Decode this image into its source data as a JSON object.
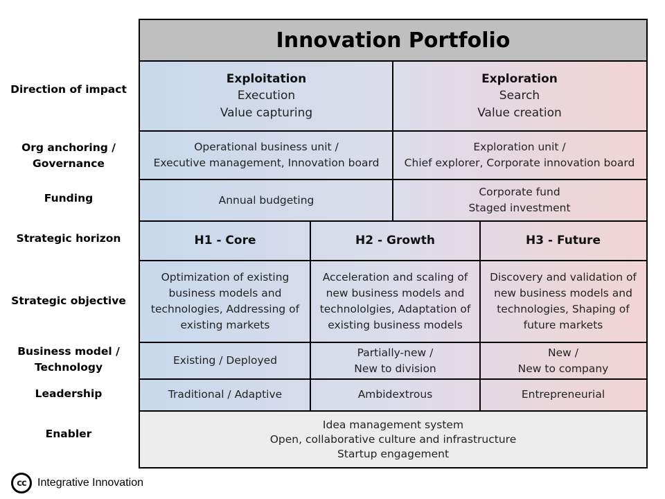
{
  "title": "Innovation Portfolio",
  "row_labels": {
    "direction": "Direction of impact",
    "org": "Org anchoring /\nGovernance",
    "funding": "Funding",
    "horizon": "Strategic horizon",
    "objective": "Strategic objective",
    "business": "Business model /\nTechnology",
    "leadership": "Leadership",
    "enabler": "Enabler"
  },
  "direction": {
    "exploitation_heading": "Exploitation",
    "exploitation_text": "Execution\nValue capturing",
    "exploration_heading": "Exploration",
    "exploration_text": "Search\nValue creation"
  },
  "org": {
    "exploitation": "Operational business unit /\nExecutive management, Innovation board",
    "exploration": "Exploration unit /\nChief explorer, Corporate innovation board"
  },
  "funding": {
    "exploitation": "Annual budgeting",
    "exploration": "Corporate fund\nStaged investment"
  },
  "horizons": [
    "H1 - Core",
    "H2 - Growth",
    "H3 - Future"
  ],
  "objectives": [
    "Optimization of existing\nbusiness models and\ntechnologies, Addressing of\nexisting markets",
    "Acceleration and scaling of\nnew business models and\ntechnololgies, Adaptation of\nexisting business models",
    "Discovery and validation of\nnew business models and\ntechnologies, Shaping of\nfuture markets"
  ],
  "business_models": [
    "Existing / Deployed",
    "Partially-new /\nNew to division",
    "New /\nNew to company"
  ],
  "leadership": [
    "Traditional / Adaptive",
    "Ambidextrous",
    "Entrepreneurial"
  ],
  "enabler": "Idea management system\nOpen, collaborative culture and infrastructure\nStartup engagement",
  "footer": {
    "cc_icon": "cc",
    "text": "Integrative Innovation"
  }
}
